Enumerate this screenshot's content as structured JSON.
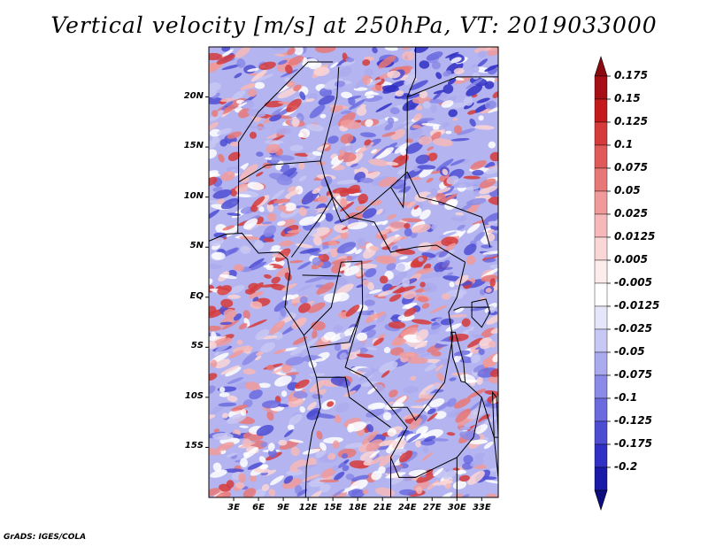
{
  "title": "Vertical velocity [m/s] at 250hPa, VT: 2019033000",
  "footer": "GrADS: IGES/COLA",
  "map": {
    "lon_range": [
      0,
      35
    ],
    "lat_range": [
      -20,
      25
    ],
    "lat_ticks": [
      {
        "value": 20,
        "label": "20N"
      },
      {
        "value": 15,
        "label": "15N"
      },
      {
        "value": 10,
        "label": "10N"
      },
      {
        "value": 5,
        "label": "5N"
      },
      {
        "value": 0,
        "label": "EQ"
      },
      {
        "value": -5,
        "label": "5S"
      },
      {
        "value": -10,
        "label": "10S"
      },
      {
        "value": -15,
        "label": "15S"
      }
    ],
    "lon_ticks": [
      {
        "value": 3,
        "label": "3E"
      },
      {
        "value": 6,
        "label": "6E"
      },
      {
        "value": 9,
        "label": "9E"
      },
      {
        "value": 12,
        "label": "12E"
      },
      {
        "value": 15,
        "label": "15E"
      },
      {
        "value": 18,
        "label": "18E"
      },
      {
        "value": 21,
        "label": "21E"
      },
      {
        "value": 24,
        "label": "24E"
      },
      {
        "value": 27,
        "label": "27E"
      },
      {
        "value": 30,
        "label": "30E"
      },
      {
        "value": 33,
        "label": "33E"
      }
    ]
  },
  "colorbar": {
    "levels": [
      {
        "label": "0.175",
        "color": "#a50f15"
      },
      {
        "label": "0.15",
        "color": "#c41a1c"
      },
      {
        "label": "0.125",
        "color": "#d63b3b"
      },
      {
        "label": "0.1",
        "color": "#e05a5a"
      },
      {
        "label": "0.075",
        "color": "#e87878"
      },
      {
        "label": "0.05",
        "color": "#f09a9a"
      },
      {
        "label": "0.025",
        "color": "#f6b8b8"
      },
      {
        "label": "0.0125",
        "color": "#fad6d6"
      },
      {
        "label": "0.005",
        "color": "#fdecec"
      },
      {
        "label": "-0.005",
        "color": "#ffffff"
      },
      {
        "label": "-0.0125",
        "color": "#e6e6fb"
      },
      {
        "label": "-0.025",
        "color": "#c8c8f4"
      },
      {
        "label": "-0.05",
        "color": "#aaaaef"
      },
      {
        "label": "-0.075",
        "color": "#8a8ae8"
      },
      {
        "label": "-0.1",
        "color": "#6b6bdf"
      },
      {
        "label": "-0.125",
        "color": "#4d4dd4"
      },
      {
        "label": "-0.175",
        "color": "#3030c4"
      },
      {
        "label": "-0.2",
        "color": "#1a1aa8"
      }
    ],
    "top_color": "#8b0a10",
    "bottom_color": "#0d0d80"
  }
}
